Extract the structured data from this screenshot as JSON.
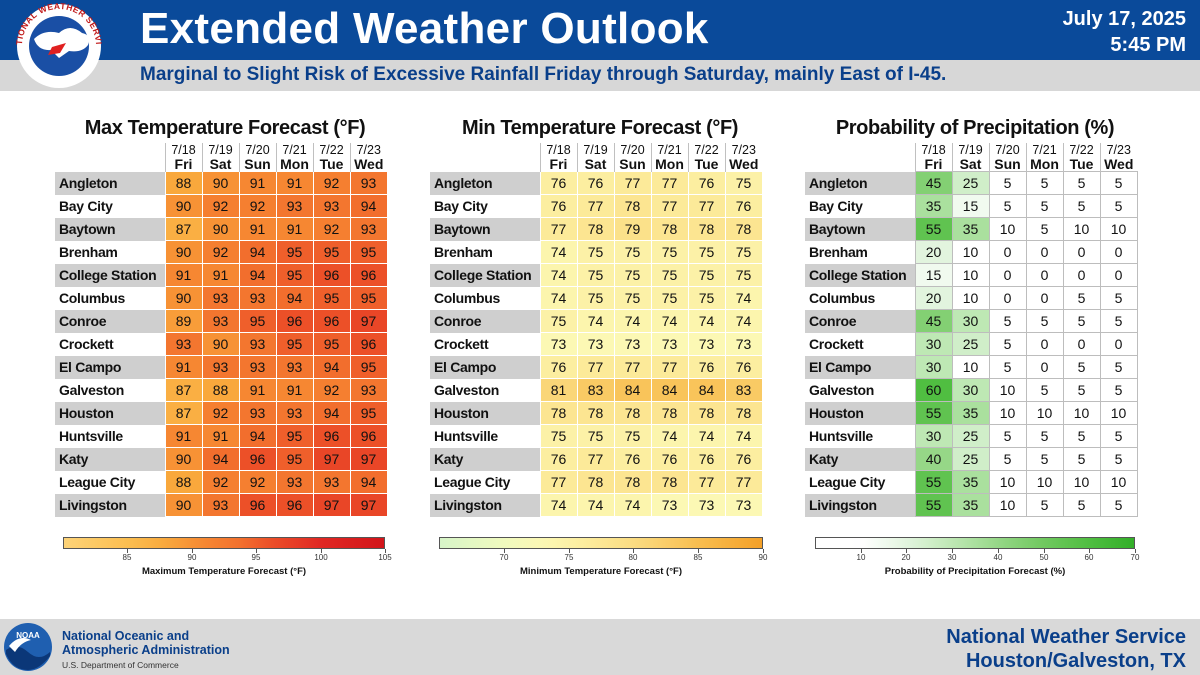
{
  "header": {
    "title": "Extended Weather Outlook",
    "subtitle": "Marginal to Slight Risk of Excessive Rainfall Friday through Saturday, mainly East of I-45.",
    "date": "July 17, 2025",
    "time": "5:45 PM",
    "logo_text": "NATIONAL WEATHER SERVICE"
  },
  "days": [
    {
      "date": "7/18",
      "dow": "Fri"
    },
    {
      "date": "7/19",
      "dow": "Sat"
    },
    {
      "date": "7/20",
      "dow": "Sun"
    },
    {
      "date": "7/21",
      "dow": "Mon"
    },
    {
      "date": "7/22",
      "dow": "Tue"
    },
    {
      "date": "7/23",
      "dow": "Wed"
    }
  ],
  "cities": [
    "Angleton",
    "Bay City",
    "Baytown",
    "Brenham",
    "College Station",
    "Columbus",
    "Conroe",
    "Crockett",
    "El Campo",
    "Galveston",
    "Houston",
    "Huntsville",
    "Katy",
    "League City",
    "Livingston"
  ],
  "panels": [
    {
      "id": "max",
      "title": "Max Temperature Forecast (°F)",
      "colorbar_label": "Maximum Temperature Forecast (°F)",
      "ticks": [
        "85",
        "90",
        "95",
        "100",
        "105"
      ],
      "values": [
        [
          88,
          90,
          91,
          91,
          92,
          93
        ],
        [
          90,
          92,
          92,
          93,
          93,
          94
        ],
        [
          87,
          90,
          91,
          91,
          92,
          93
        ],
        [
          90,
          92,
          94,
          95,
          95,
          95
        ],
        [
          91,
          91,
          94,
          95,
          96,
          96
        ],
        [
          90,
          93,
          93,
          94,
          95,
          95
        ],
        [
          89,
          93,
          95,
          96,
          96,
          97
        ],
        [
          93,
          90,
          93,
          95,
          95,
          96
        ],
        [
          91,
          93,
          93,
          93,
          94,
          95
        ],
        [
          87,
          88,
          91,
          91,
          92,
          93
        ],
        [
          87,
          92,
          93,
          93,
          94,
          95
        ],
        [
          91,
          91,
          94,
          95,
          96,
          96
        ],
        [
          90,
          94,
          96,
          95,
          97,
          97
        ],
        [
          88,
          92,
          92,
          93,
          93,
          94
        ],
        [
          90,
          93,
          96,
          96,
          97,
          97
        ]
      ]
    },
    {
      "id": "min",
      "title": "Min Temperature Forecast (°F)",
      "colorbar_label": "Minimum Temperature Forecast (°F)",
      "ticks": [
        "70",
        "75",
        "80",
        "85",
        "90"
      ],
      "values": [
        [
          76,
          76,
          77,
          77,
          76,
          75
        ],
        [
          76,
          77,
          78,
          77,
          77,
          76
        ],
        [
          77,
          78,
          79,
          78,
          78,
          78
        ],
        [
          74,
          75,
          75,
          75,
          75,
          75
        ],
        [
          74,
          75,
          75,
          75,
          75,
          75
        ],
        [
          74,
          75,
          75,
          75,
          75,
          74
        ],
        [
          75,
          74,
          74,
          74,
          74,
          74
        ],
        [
          73,
          73,
          73,
          73,
          73,
          73
        ],
        [
          76,
          77,
          77,
          77,
          76,
          76
        ],
        [
          81,
          83,
          84,
          84,
          84,
          83
        ],
        [
          78,
          78,
          78,
          78,
          78,
          78
        ],
        [
          75,
          75,
          75,
          74,
          74,
          74
        ],
        [
          76,
          77,
          76,
          76,
          76,
          76
        ],
        [
          77,
          78,
          78,
          78,
          77,
          77
        ],
        [
          74,
          74,
          74,
          73,
          73,
          73
        ]
      ]
    },
    {
      "id": "pop",
      "title": "Probability of Precipitation (%)",
      "colorbar_label": "Probability of Precipitation Forecast (%)",
      "ticks": [
        "10",
        "20",
        "30",
        "40",
        "50",
        "60",
        "70"
      ],
      "values": [
        [
          45,
          25,
          5,
          5,
          5,
          5
        ],
        [
          35,
          15,
          5,
          5,
          5,
          5
        ],
        [
          55,
          35,
          10,
          5,
          10,
          10
        ],
        [
          20,
          10,
          0,
          0,
          0,
          0
        ],
        [
          15,
          10,
          0,
          0,
          0,
          0
        ],
        [
          20,
          10,
          0,
          0,
          5,
          5
        ],
        [
          45,
          30,
          5,
          5,
          5,
          5
        ],
        [
          30,
          25,
          5,
          0,
          0,
          0
        ],
        [
          30,
          10,
          5,
          0,
          5,
          5
        ],
        [
          60,
          30,
          10,
          5,
          5,
          5
        ],
        [
          55,
          35,
          10,
          10,
          10,
          10
        ],
        [
          30,
          25,
          5,
          5,
          5,
          5
        ],
        [
          40,
          25,
          5,
          5,
          5,
          5
        ],
        [
          55,
          35,
          10,
          10,
          10,
          10
        ],
        [
          55,
          35,
          10,
          5,
          5,
          5
        ]
      ]
    }
  ],
  "footer": {
    "noaa_line1": "National Oceanic and",
    "noaa_line2": "Atmospheric Administration",
    "noaa_dept": "U.S. Department of Commerce",
    "noaa_logo_text": "NOAA",
    "nws_line1": "National Weather Service",
    "nws_line2": "Houston/Galveston, TX"
  },
  "colors": {
    "header_blue": "#0a4a9a",
    "subtitle_blue": "#0a3f8a"
  }
}
